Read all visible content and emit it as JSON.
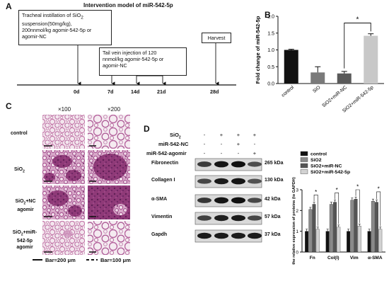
{
  "panelA": {
    "letter": "A",
    "title": "Intervention model of miR-542-5p",
    "box1_line1": "Tracheal instillation of SiO",
    "box1_sub": "2",
    "box1_line2": "suspension(50mg/kg),",
    "box1_line3": "200nnmol/kg agomir-542-5p or",
    "box1_line4": "agomir-NC",
    "box2_line1": "Tail vein injection of 120",
    "box2_line2": "nnmol/kg agomir-542-5p or",
    "box2_line3": "agomir-NC",
    "box3": "Harvest",
    "timepoints": [
      "0d",
      "7d",
      "14d",
      "21d",
      "28d"
    ]
  },
  "panelB": {
    "letter": "B",
    "star": "*",
    "chart_data": {
      "type": "bar",
      "ylabel": "Fold change of miR-542-5p",
      "ylim": [
        0,
        2.0
      ],
      "yticks": [
        "0.0",
        "0.5",
        "1.0",
        "1.5",
        "2.0"
      ],
      "categories": [
        "control",
        "SiO",
        "SiO2+miR-NC",
        "SiO2+miR-542-5p"
      ],
      "values": [
        1.0,
        0.33,
        0.3,
        1.42
      ],
      "errors": [
        0.02,
        0.17,
        0.06,
        0.06
      ],
      "colors": [
        "#111111",
        "#7a7a7a",
        "#5a5a5a",
        "#c8c8c8"
      ]
    }
  },
  "panelC": {
    "letter": "C",
    "col1": "×100",
    "col2": "×200",
    "rows": [
      "control",
      "SiO",
      "SiO +NC agomir",
      "SiO +miR- 542-5p agomir"
    ],
    "row_labels": {
      "r1": "control",
      "r2a": "SiO",
      "r2sub": "2",
      "r3a": "SiO",
      "r3sub": "2",
      "r3b": "+NC",
      "r3c": "agomir",
      "r4a": "SiO",
      "r4sub": "2",
      "r4b": "+miR-",
      "r4c": "542-5p",
      "r4d": "agomir"
    },
    "bar1": "Bar=200 μm",
    "bar2": "Bar=100 μm"
  },
  "panelD": {
    "letter": "D",
    "cond_sio2": "SiO",
    "cond_sio2_sub": "2",
    "cond_nc": "miR-542-NC",
    "cond_ago": "miR-542-agomir",
    "signs": [
      [
        "-",
        "+",
        "+",
        "+"
      ],
      [
        "-",
        "-",
        "+",
        "-"
      ],
      [
        "-",
        "-",
        "-",
        "+"
      ]
    ],
    "blots": [
      {
        "name": "Fibronectin",
        "kda": "265 kDa"
      },
      {
        "name": "Collagen I",
        "kda": "130 kDa"
      },
      {
        "name": "α-SMA",
        "kda": "42 kDa"
      },
      {
        "name": "Vimentin",
        "kda": "57 kDa"
      },
      {
        "name": "Gapdh",
        "kda": "37 kDa"
      }
    ],
    "chart_data": {
      "type": "bar",
      "ylabel": "the relative expression of proteins (to GAPDH)",
      "ylim": [
        0,
        3
      ],
      "yticks": [
        "0",
        "1",
        "2",
        "3"
      ],
      "categories": [
        "Fn",
        "Col(I)",
        "Vim",
        "α-SMA"
      ],
      "series": [
        {
          "name": "control",
          "values": [
            1.0,
            1.0,
            1.0,
            1.0
          ],
          "color": "#111111"
        },
        {
          "name": "SiO2",
          "values": [
            2.05,
            2.3,
            2.5,
            2.45
          ],
          "color": "#8a8a8a"
        },
        {
          "name": "SiO2+miR-NC",
          "values": [
            2.3,
            2.4,
            2.55,
            2.4
          ],
          "color": "#555555"
        },
        {
          "name": "SiO2+miR-542-5p",
          "values": [
            1.1,
            1.2,
            1.25,
            1.1
          ],
          "color": "#d2d2d2"
        }
      ],
      "star": "*"
    }
  }
}
